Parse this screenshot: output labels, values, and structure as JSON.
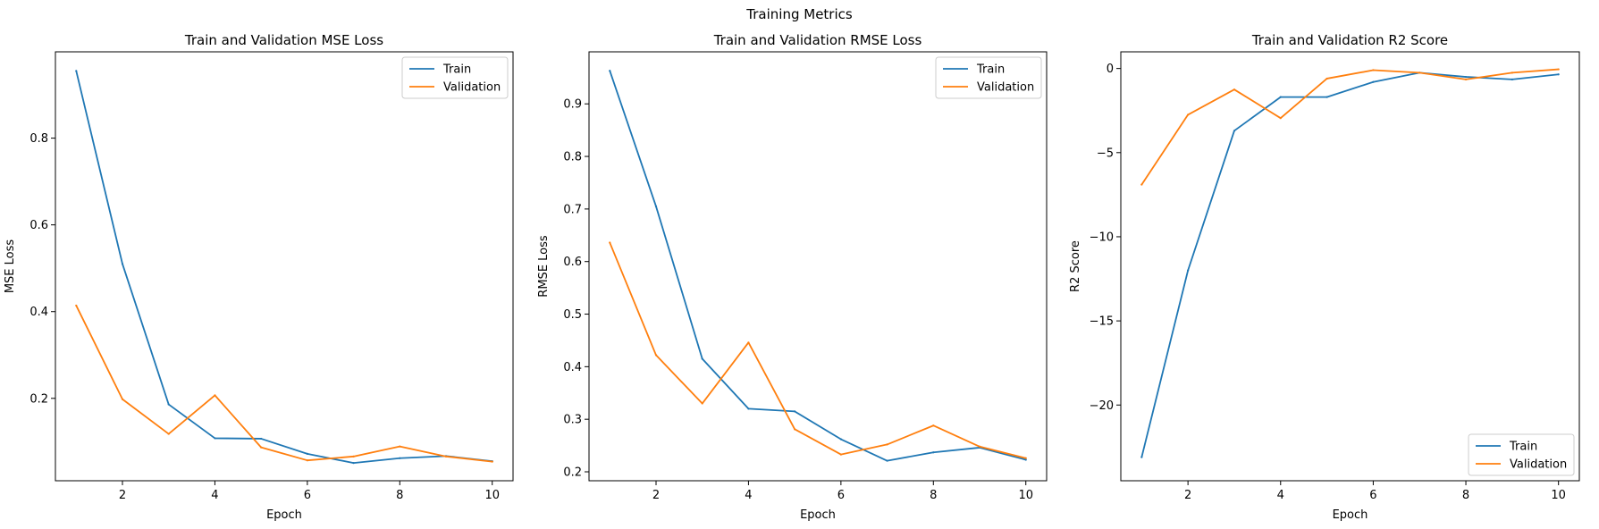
{
  "figure": {
    "suptitle": "Training Metrics"
  },
  "colors": {
    "train": "#1f77b4",
    "validation": "#ff7f0e"
  },
  "chart_data": [
    {
      "type": "line",
      "title": "Train and Validation MSE Loss",
      "xlabel": "Epoch",
      "ylabel": "MSE Loss",
      "x": [
        1,
        2,
        3,
        4,
        5,
        6,
        7,
        8,
        9,
        10
      ],
      "xlim": [
        0.55,
        10.45
      ],
      "ylim": [
        0.01,
        0.999
      ],
      "xticks": [
        2,
        4,
        6,
        8,
        10
      ],
      "yticks": [
        0.2,
        0.4,
        0.6,
        0.8
      ],
      "ytick_labels": [
        "0.2",
        "0.4",
        "0.6",
        "0.8"
      ],
      "legend": "upper right",
      "grid": false,
      "series": [
        {
          "name": "Train",
          "color": "#1f77b4",
          "values": [
            0.955,
            0.51,
            0.186,
            0.108,
            0.107,
            0.072,
            0.051,
            0.062,
            0.067,
            0.055
          ]
        },
        {
          "name": "Validation",
          "color": "#ff7f0e",
          "values": [
            0.414,
            0.198,
            0.118,
            0.207,
            0.087,
            0.057,
            0.066,
            0.089,
            0.066,
            0.054
          ]
        }
      ]
    },
    {
      "type": "line",
      "title": "Train and Validation RMSE Loss",
      "xlabel": "Epoch",
      "ylabel": "RMSE Loss",
      "x": [
        1,
        2,
        3,
        4,
        5,
        6,
        7,
        8,
        9,
        10
      ],
      "xlim": [
        0.55,
        10.45
      ],
      "ylim": [
        0.183,
        0.999
      ],
      "xticks": [
        2,
        4,
        6,
        8,
        10
      ],
      "yticks": [
        0.2,
        0.3,
        0.4,
        0.5,
        0.6,
        0.7,
        0.8,
        0.9
      ],
      "ytick_labels": [
        "0.2",
        "0.3",
        "0.4",
        "0.5",
        "0.6",
        "0.7",
        "0.8",
        "0.9"
      ],
      "legend": "upper right",
      "grid": false,
      "series": [
        {
          "name": "Train",
          "color": "#1f77b4",
          "values": [
            0.963,
            0.705,
            0.415,
            0.32,
            0.315,
            0.262,
            0.221,
            0.237,
            0.246,
            0.223
          ]
        },
        {
          "name": "Validation",
          "color": "#ff7f0e",
          "values": [
            0.636,
            0.422,
            0.33,
            0.446,
            0.281,
            0.233,
            0.252,
            0.288,
            0.248,
            0.226
          ]
        }
      ]
    },
    {
      "type": "line",
      "title": "Train and Validation R2 Score",
      "xlabel": "Epoch",
      "ylabel": "R2 Score",
      "x": [
        1,
        2,
        3,
        4,
        5,
        6,
        7,
        8,
        9,
        10
      ],
      "xlim": [
        0.55,
        10.45
      ],
      "ylim": [
        -24.5,
        0.99
      ],
      "xticks": [
        2,
        4,
        6,
        8,
        10
      ],
      "yticks": [
        -20,
        -15,
        -10,
        -5,
        0
      ],
      "ytick_labels": [
        "−20",
        "−15",
        "−10",
        "−5",
        "0"
      ],
      "legend": "lower right",
      "grid": false,
      "series": [
        {
          "name": "Train",
          "color": "#1f77b4",
          "values": [
            -23.1,
            -12.0,
            -3.7,
            -1.7,
            -1.7,
            -0.8,
            -0.25,
            -0.5,
            -0.65,
            -0.35
          ]
        },
        {
          "name": "Validation",
          "color": "#ff7f0e",
          "values": [
            -6.9,
            -2.75,
            -1.25,
            -2.95,
            -0.6,
            -0.1,
            -0.25,
            -0.65,
            -0.25,
            -0.05
          ]
        }
      ]
    }
  ]
}
